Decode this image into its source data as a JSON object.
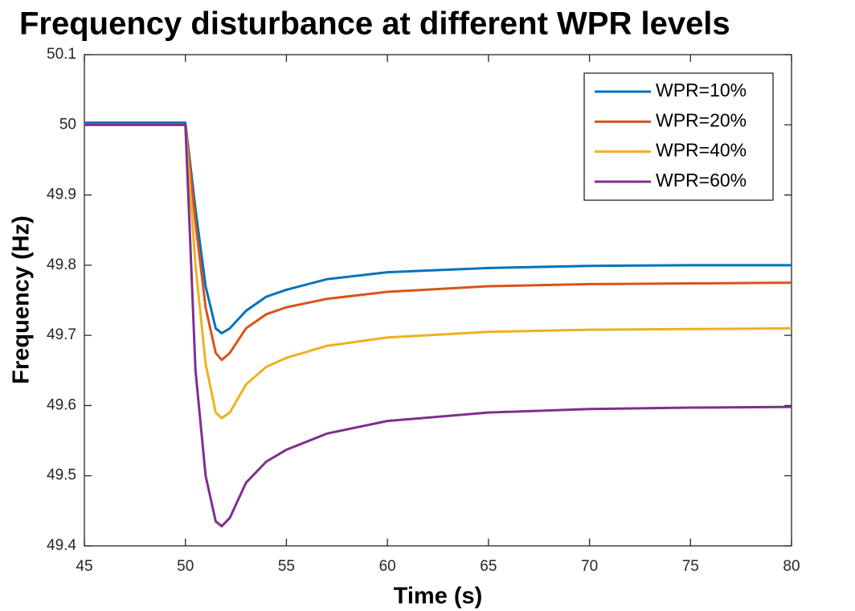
{
  "chart_data": {
    "type": "line",
    "title": "Frequency disturbance at different WPR levels",
    "xlabel": "Time (s)",
    "ylabel": "Frequency (Hz)",
    "x": [
      45,
      50,
      50.5,
      51,
      51.5,
      51.8,
      52.2,
      53,
      54,
      55,
      57,
      60,
      65,
      70,
      75,
      80
    ],
    "series": [
      {
        "name": "WPR=10%",
        "color": "#0072bd",
        "values": [
          50.003,
          50.003,
          49.88,
          49.77,
          49.71,
          49.703,
          49.71,
          49.735,
          49.755,
          49.765,
          49.78,
          49.79,
          49.796,
          49.799,
          49.8,
          49.8
        ]
      },
      {
        "name": "WPR=20%",
        "color": "#d95319",
        "values": [
          50.0,
          50.0,
          49.86,
          49.74,
          49.675,
          49.665,
          49.675,
          49.71,
          49.73,
          49.74,
          49.752,
          49.762,
          49.77,
          49.773,
          49.774,
          49.775
        ]
      },
      {
        "name": "WPR=40%",
        "color": "#edb120",
        "values": [
          50.0,
          50.0,
          49.8,
          49.66,
          49.59,
          49.582,
          49.59,
          49.63,
          49.655,
          49.668,
          49.685,
          49.697,
          49.705,
          49.708,
          49.709,
          49.71
        ]
      },
      {
        "name": "WPR=60%",
        "color": "#7e2f8e",
        "values": [
          50.0,
          50.0,
          49.65,
          49.5,
          49.435,
          49.428,
          49.44,
          49.49,
          49.52,
          49.537,
          49.56,
          49.578,
          49.59,
          49.595,
          49.597,
          49.598
        ]
      }
    ],
    "xlim": [
      45,
      80
    ],
    "xticks": [
      45,
      50,
      55,
      60,
      65,
      70,
      75,
      80
    ],
    "ylim": [
      49.4,
      50.1
    ],
    "yticks": [
      49.4,
      49.5,
      49.6,
      49.7,
      49.8,
      49.9,
      50,
      50.1
    ],
    "legend": "upper right",
    "grid": false
  }
}
